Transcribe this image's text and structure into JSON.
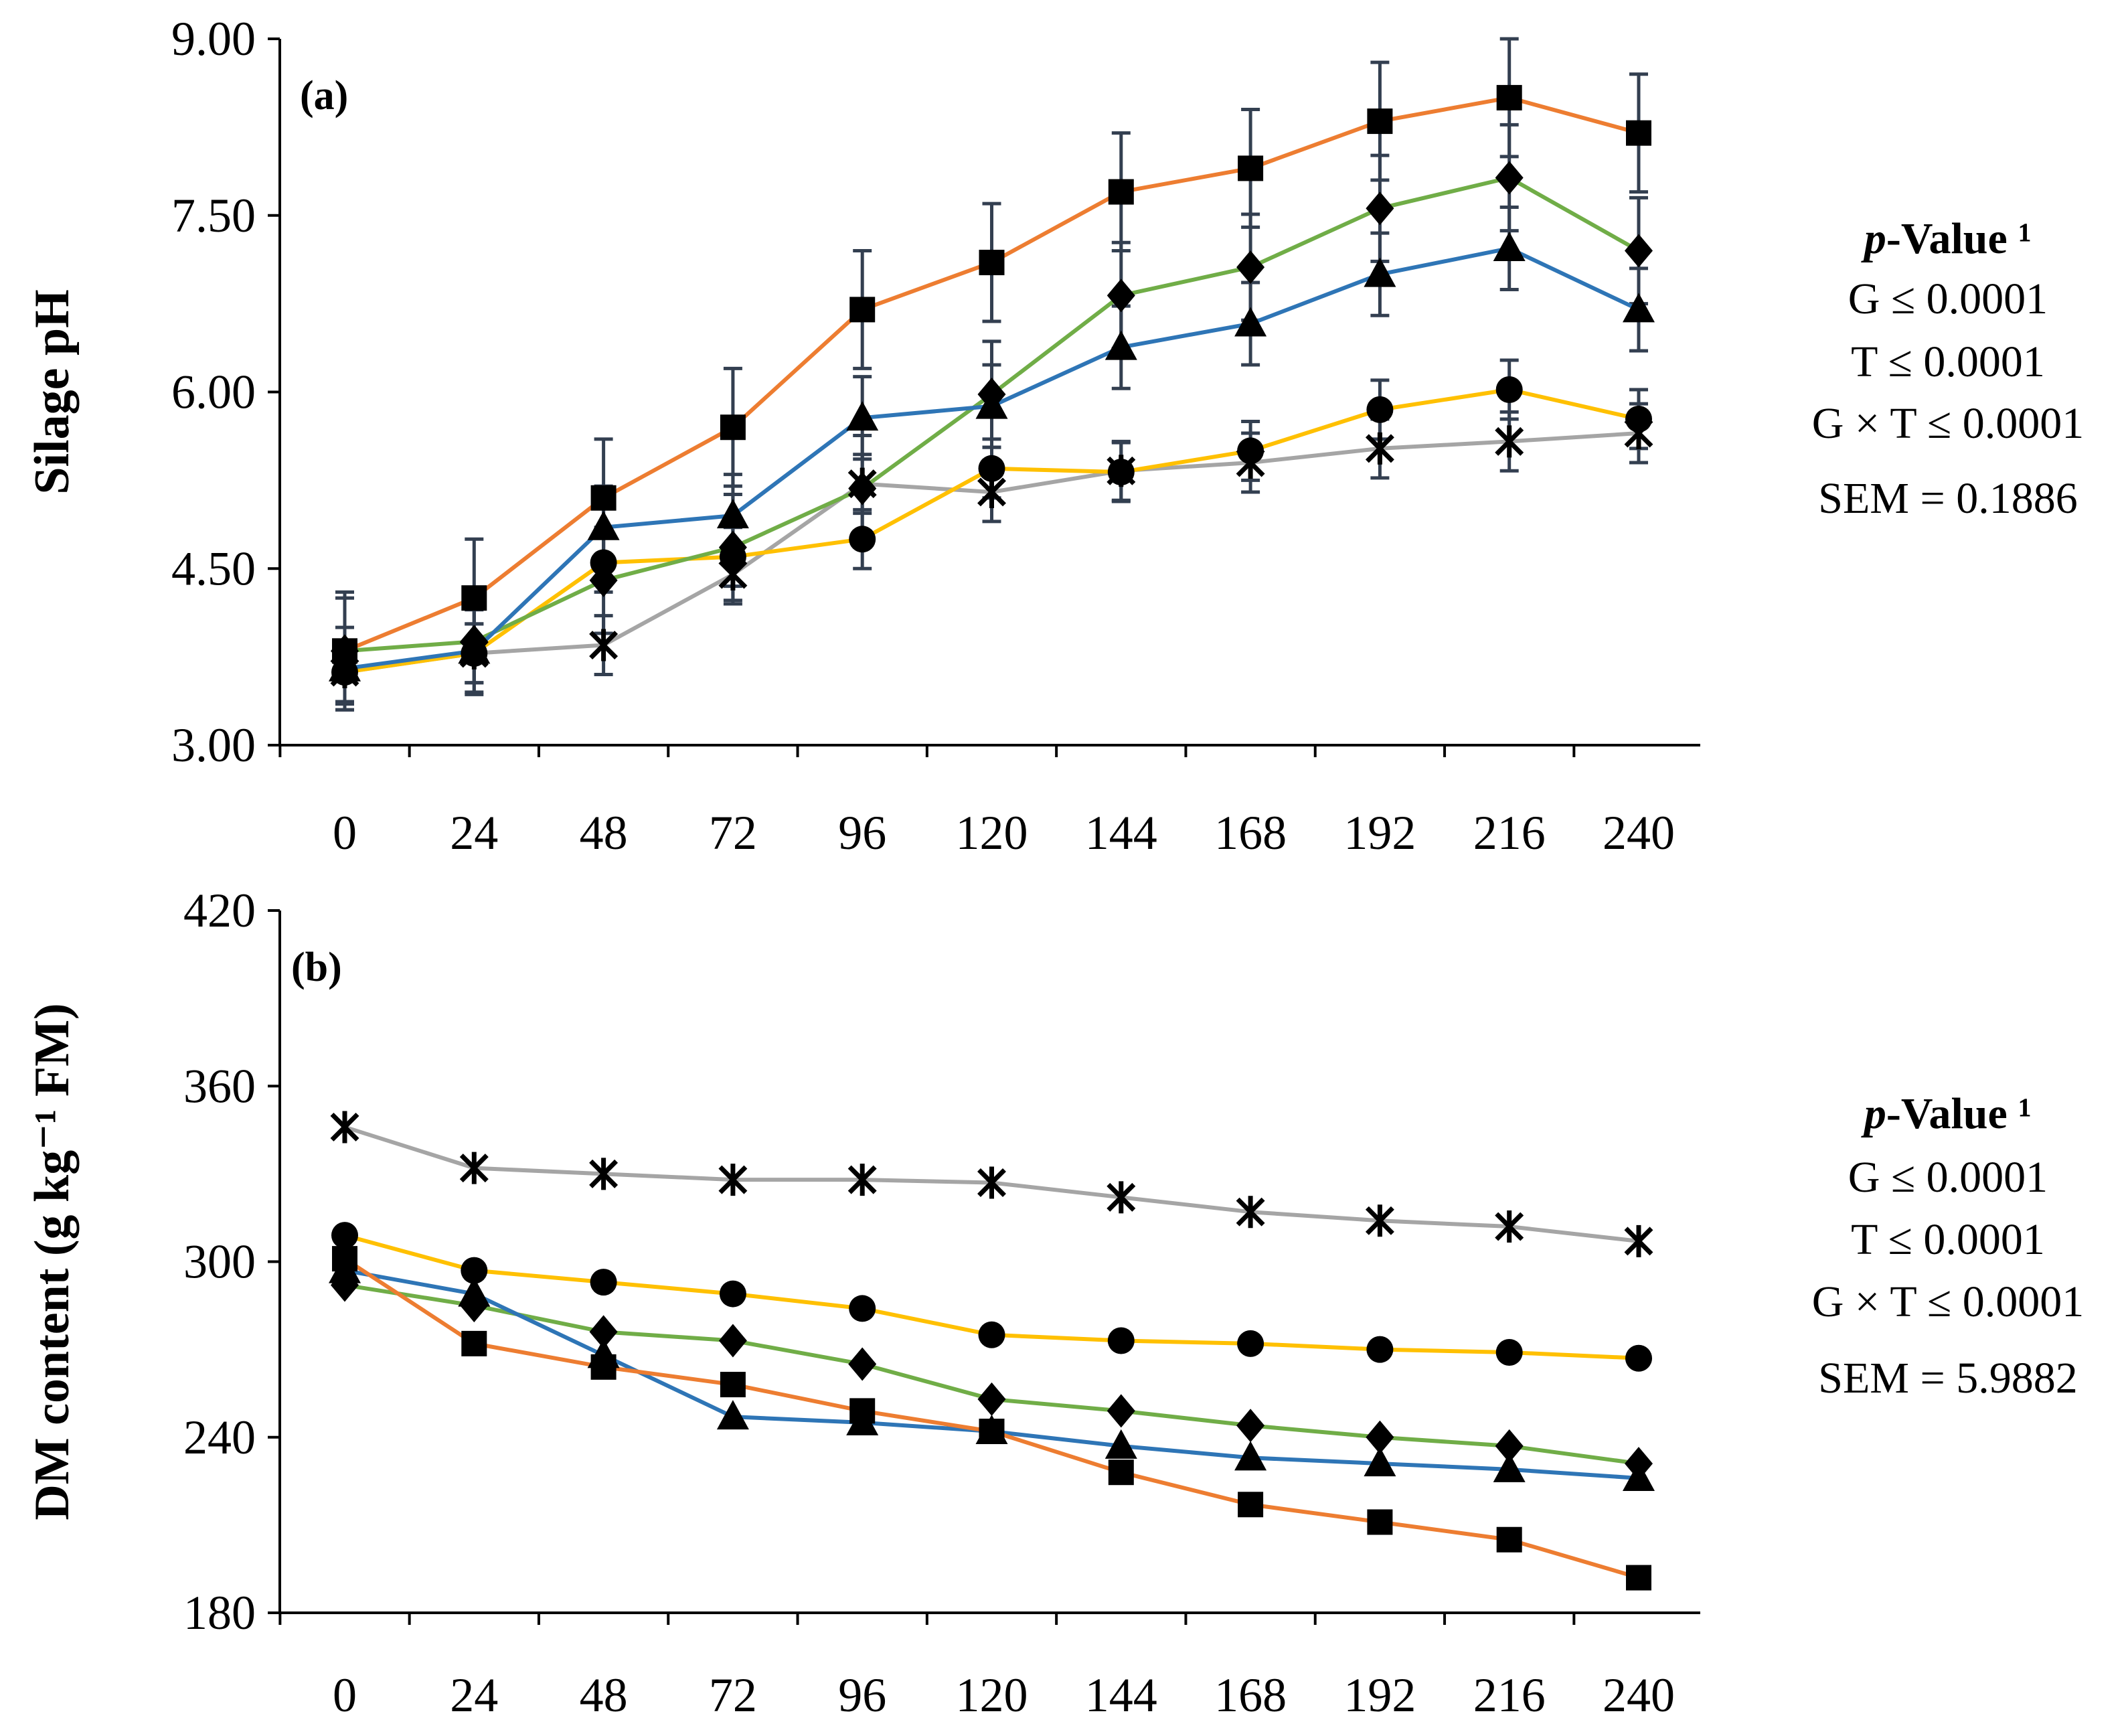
{
  "chart_data": [
    {
      "type": "line",
      "panel_label": "(a)",
      "title": "",
      "xlabel": "",
      "ylabel": "Silage pH",
      "ylim": [
        3.0,
        9.0
      ],
      "yticks": [
        "3.00",
        "4.50",
        "6.00",
        "7.50",
        "9.00"
      ],
      "categories": [
        "0",
        "24",
        "48",
        "72",
        "96",
        "120",
        "144",
        "168",
        "192",
        "216",
        "240"
      ],
      "grid": false,
      "error_bars": true,
      "series": [
        {
          "name": "orange-square",
          "color": "#ED7D31",
          "marker": "square",
          "values": [
            3.8,
            4.25,
            5.1,
            5.7,
            6.7,
            7.1,
            7.7,
            7.9,
            8.3,
            8.5,
            8.2
          ],
          "errors": [
            0.5,
            0.5,
            0.5,
            0.5,
            0.5,
            0.5,
            0.5,
            0.5,
            0.5,
            0.5,
            0.5
          ]
        },
        {
          "name": "blue-triangle",
          "color": "#2E75B6",
          "marker": "triangle",
          "values": [
            3.65,
            3.8,
            4.85,
            4.95,
            5.78,
            5.88,
            6.38,
            6.58,
            7.0,
            7.22,
            6.7
          ],
          "errors": [
            0.35,
            0.35,
            0.35,
            0.35,
            0.35,
            0.35,
            0.35,
            0.35,
            0.35,
            0.35,
            0.35
          ]
        },
        {
          "name": "green-diamond",
          "color": "#70AD47",
          "marker": "diamond",
          "values": [
            3.8,
            3.88,
            4.4,
            4.68,
            5.18,
            5.98,
            6.82,
            7.06,
            7.56,
            7.82,
            7.2
          ],
          "errors": [
            0.45,
            0.45,
            0.45,
            0.45,
            0.45,
            0.45,
            0.45,
            0.45,
            0.45,
            0.45,
            0.45
          ]
        },
        {
          "name": "yellow-circle",
          "color": "#FFC000",
          "marker": "circle",
          "values": [
            3.62,
            3.78,
            4.55,
            4.6,
            4.75,
            5.35,
            5.32,
            5.5,
            5.85,
            6.02,
            5.77
          ],
          "errors": [
            0.25,
            0.25,
            0.25,
            0.25,
            0.25,
            0.25,
            0.25,
            0.25,
            0.25,
            0.25,
            0.25
          ]
        },
        {
          "name": "gray-asterisk",
          "color": "#A5A5A5",
          "marker": "asterisk",
          "values": [
            3.62,
            3.78,
            3.85,
            4.45,
            5.22,
            5.15,
            5.33,
            5.4,
            5.52,
            5.58,
            5.65
          ],
          "errors": [
            0.25,
            0.25,
            0.25,
            0.25,
            0.25,
            0.25,
            0.25,
            0.25,
            0.25,
            0.25,
            0.25
          ]
        }
      ],
      "stats": {
        "heading_italic": "p",
        "heading_rest": "-Value ¹",
        "lines": [
          "G ≤ 0.0001",
          "T ≤ 0.0001",
          "G × T ≤ 0.0001",
          "SEM = 0.1886"
        ]
      }
    },
    {
      "type": "line",
      "panel_label": "(b)",
      "title": "",
      "xlabel": "",
      "ylabel": "DM content (g kg⁻¹ FM)",
      "ylim": [
        180,
        420
      ],
      "yticks": [
        "180",
        "240",
        "300",
        "360",
        "420"
      ],
      "categories": [
        "0",
        "24",
        "48",
        "72",
        "96",
        "120",
        "144",
        "168",
        "192",
        "216",
        "240"
      ],
      "grid": false,
      "error_bars": false,
      "series": [
        {
          "name": "orange-square",
          "color": "#ED7D31",
          "marker": "square",
          "values": [
            301,
            272,
            264,
            258,
            249,
            242,
            228,
            217,
            211,
            205,
            192
          ]
        },
        {
          "name": "blue-triangle",
          "color": "#2E75B6",
          "marker": "triangle",
          "values": [
            297,
            289,
            268,
            247,
            245,
            242,
            237,
            233,
            231,
            229,
            226
          ]
        },
        {
          "name": "green-diamond",
          "color": "#70AD47",
          "marker": "diamond",
          "values": [
            292,
            285,
            276,
            273,
            265,
            253,
            249,
            244,
            240,
            237,
            231
          ]
        },
        {
          "name": "yellow-circle",
          "color": "#FFC000",
          "marker": "circle",
          "values": [
            309,
            297,
            293,
            289,
            284,
            275,
            273,
            272,
            270,
            269,
            267
          ]
        },
        {
          "name": "gray-asterisk",
          "color": "#A5A5A5",
          "marker": "asterisk",
          "values": [
            346,
            332,
            330,
            328,
            328,
            327,
            322,
            317,
            314,
            312,
            307
          ]
        }
      ],
      "stats": {
        "heading_italic": "p",
        "heading_rest": "-Value ¹",
        "lines": [
          "G ≤ 0.0001",
          "T ≤ 0.0001",
          "G × T ≤ 0.0001",
          "SEM = 5.9882"
        ]
      }
    }
  ]
}
